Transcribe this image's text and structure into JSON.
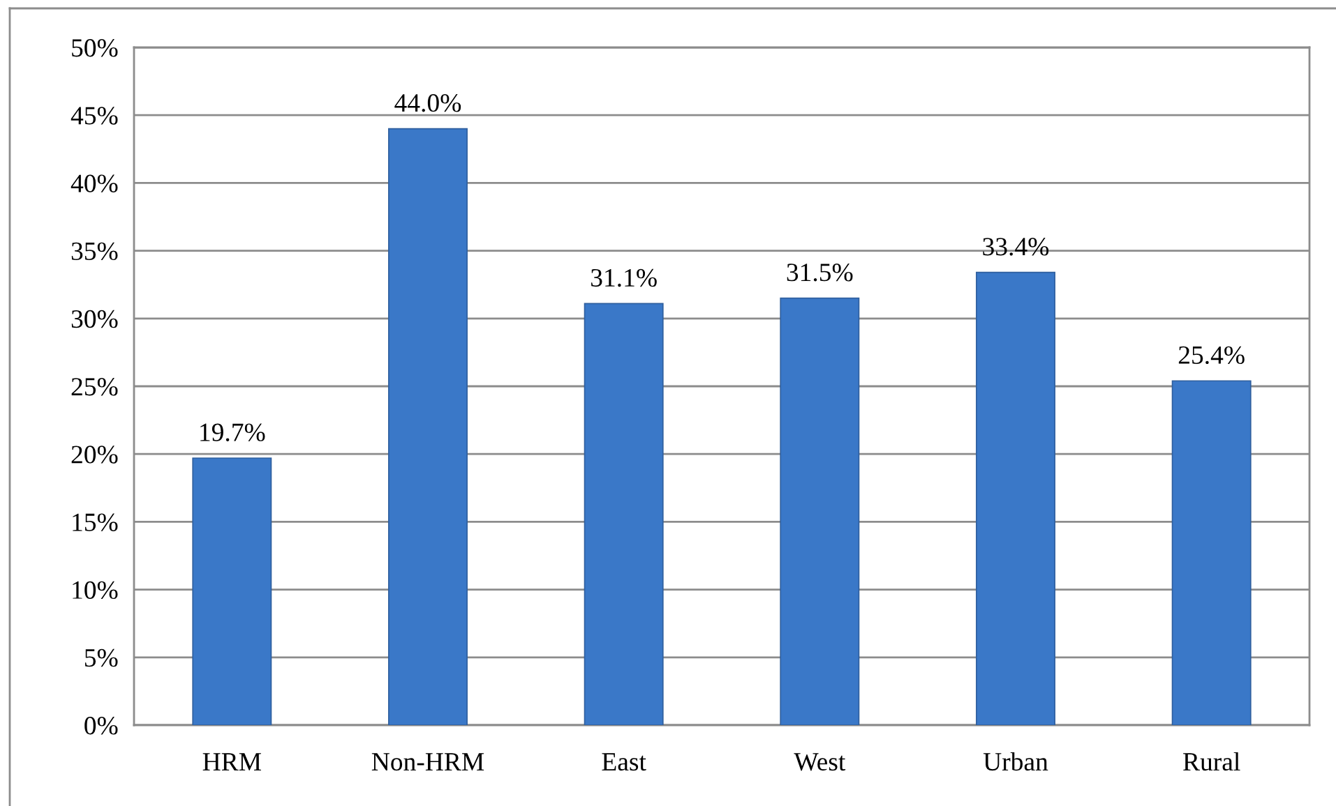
{
  "chart_data": {
    "type": "bar",
    "categories": [
      "HRM",
      "Non-HRM",
      "East",
      "West",
      "Urban",
      "Rural"
    ],
    "values": [
      19.7,
      44.0,
      31.1,
      31.5,
      33.4,
      25.4
    ],
    "value_labels": [
      "19.7%",
      "44.0%",
      "31.1%",
      "31.5%",
      "33.4%",
      "25.4%"
    ],
    "color": "#3a78c8",
    "ylim": [
      0,
      50
    ],
    "yticks": [
      {
        "value": 0,
        "label": "0%"
      },
      {
        "value": 5,
        "label": "5%"
      },
      {
        "value": 10,
        "label": "10%"
      },
      {
        "value": 15,
        "label": "15%"
      },
      {
        "value": 20,
        "label": "20%"
      },
      {
        "value": 25,
        "label": "25%"
      },
      {
        "value": 30,
        "label": "30%"
      },
      {
        "value": 35,
        "label": "35%"
      },
      {
        "value": 40,
        "label": "40%"
      },
      {
        "value": 45,
        "label": "45%"
      },
      {
        "value": 50,
        "label": "50%"
      }
    ],
    "grid": "y",
    "legend": false
  }
}
